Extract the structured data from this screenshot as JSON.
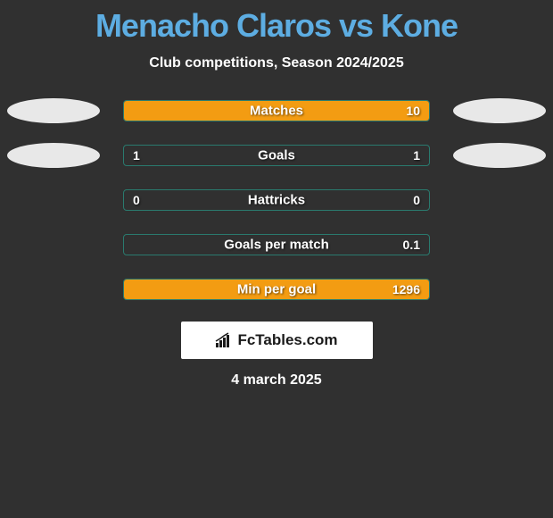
{
  "header": {
    "title": "Menacho Claros vs Kone",
    "subtitle": "Club competitions, Season 2024/2025"
  },
  "stats": [
    {
      "label": "Matches",
      "left_value": "",
      "right_value": "10",
      "fill_mode": "full",
      "left_pct": 0,
      "right_pct": 100,
      "show_left_avatar": true,
      "show_right_avatar": true
    },
    {
      "label": "Goals",
      "left_value": "1",
      "right_value": "1",
      "fill_mode": "none",
      "left_pct": 0,
      "right_pct": 0,
      "show_left_avatar": true,
      "show_right_avatar": true
    },
    {
      "label": "Hattricks",
      "left_value": "0",
      "right_value": "0",
      "fill_mode": "none",
      "left_pct": 0,
      "right_pct": 0,
      "show_left_avatar": false,
      "show_right_avatar": false
    },
    {
      "label": "Goals per match",
      "left_value": "",
      "right_value": "0.1",
      "fill_mode": "none",
      "left_pct": 0,
      "right_pct": 0,
      "show_left_avatar": false,
      "show_right_avatar": false
    },
    {
      "label": "Min per goal",
      "left_value": "",
      "right_value": "1296",
      "fill_mode": "full",
      "left_pct": 0,
      "right_pct": 100,
      "show_left_avatar": false,
      "show_right_avatar": false
    }
  ],
  "colors": {
    "background": "#303030",
    "title_color": "#5dade2",
    "text_color": "#ffffff",
    "bar_fill": "#f39c12",
    "bar_border": "#2a7a6e",
    "avatar_bg": "#e8e8e8",
    "logo_bg": "#ffffff",
    "logo_text": "#1a1a1a"
  },
  "logo": {
    "text": "FcTables.com"
  },
  "footer": {
    "date": "4 march 2025"
  }
}
